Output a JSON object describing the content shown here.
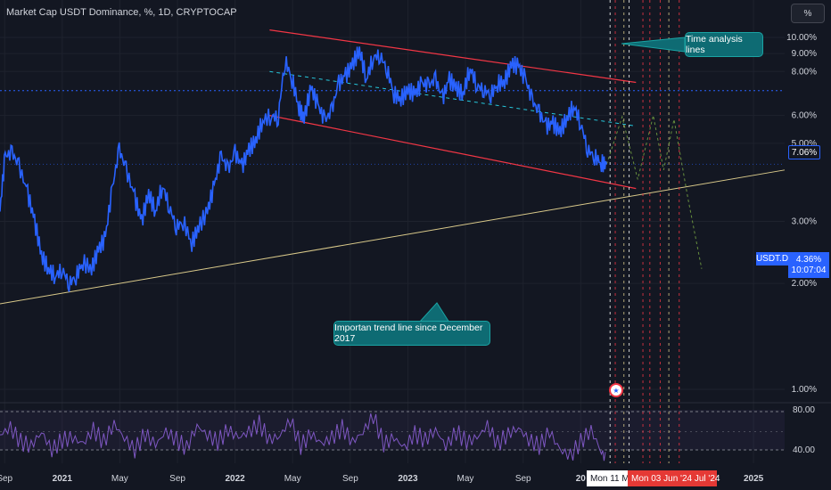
{
  "header": {
    "title": "Market Cap USDT Dominance, %, 1D, CRYPTOCAP"
  },
  "toolbar": {
    "scale_button": "%"
  },
  "annotations": {
    "time_lines_label": "Time analysis lines",
    "trend_line_label": "Importan trend line since December 2017"
  },
  "price_tags": {
    "level": "7.06%",
    "symbol": "USDT.D",
    "last_value": "4.36%",
    "countdown": "10:07:04"
  },
  "x_highlight": {
    "cursor_date": "Mon 11 M",
    "range_date": "Mon 03 Jun '24   Jul '24"
  },
  "colors": {
    "background": "#131722",
    "series": "#2962ff",
    "channel": "#f23645",
    "midline": "#26c6da",
    "trend": "#d9c98a",
    "rsi": "#7e57c2",
    "grid": "#1e222d"
  },
  "icons": {
    "event_marker": "us-flag-icon"
  },
  "chart_data": [
    {
      "type": "line",
      "name": "USDT Dominance",
      "y_scale": "log",
      "ylim": [
        0.95,
        11.5
      ],
      "ylabel": "",
      "y_ticks": [
        "10.00%",
        "9.00%",
        "8.00%",
        "6.00%",
        "5.00%",
        "3.00%",
        "2.00%",
        "1.00%"
      ],
      "y_tick_values": [
        10,
        9,
        8,
        6,
        5,
        3,
        2,
        1
      ],
      "x_ticks": [
        "Sep",
        "2021",
        "May",
        "Sep",
        "2022",
        "May",
        "Sep",
        "2023",
        "May",
        "Sep",
        "20",
        "2025"
      ],
      "x_ticks_bold": [
        false,
        true,
        false,
        false,
        true,
        false,
        false,
        true,
        false,
        false,
        true,
        true
      ],
      "x_tick_dates": [
        2020.667,
        2021.0,
        2021.333,
        2021.667,
        2022.0,
        2022.333,
        2022.667,
        2023.0,
        2023.333,
        2023.667,
        2024.0,
        2025.0
      ],
      "xlim": [
        2020.64,
        2025.18
      ],
      "series": [
        {
          "x": [
            2020.64,
            2020.67,
            2020.71,
            2020.75,
            2020.8,
            2020.84,
            2020.88,
            2020.92,
            2020.96,
            2021.0,
            2021.04,
            2021.08,
            2021.12,
            2021.17,
            2021.21,
            2021.25,
            2021.29,
            2021.33,
            2021.37,
            2021.42,
            2021.46,
            2021.5,
            2021.54,
            2021.58,
            2021.62,
            2021.66,
            2021.7,
            2021.75,
            2021.79,
            2021.84,
            2021.88,
            2021.92,
            2021.96,
            2022.0,
            2022.04,
            2022.08,
            2022.12,
            2022.16,
            2022.21,
            2022.25,
            2022.29,
            2022.33,
            2022.37,
            2022.4,
            2022.44,
            2022.48,
            2022.52,
            2022.56,
            2022.6,
            2022.64,
            2022.68,
            2022.72,
            2022.76,
            2022.8,
            2022.84,
            2022.88,
            2022.92,
            2022.96,
            2023.0,
            2023.04,
            2023.08,
            2023.12,
            2023.16,
            2023.2,
            2023.24,
            2023.28,
            2023.32,
            2023.36,
            2023.4,
            2023.44,
            2023.48,
            2023.52,
            2023.56,
            2023.6,
            2023.64,
            2023.68,
            2023.72,
            2023.76,
            2023.8,
            2023.84,
            2023.88,
            2023.92,
            2023.96,
            2024.0,
            2024.04,
            2024.08,
            2024.12,
            2024.15
          ],
          "y": [
            3.2,
            4.6,
            4.7,
            4.3,
            3.6,
            3.0,
            2.4,
            2.2,
            2.1,
            2.2,
            2.0,
            2.1,
            2.3,
            2.2,
            2.5,
            2.7,
            3.7,
            4.8,
            4.2,
            3.5,
            3.0,
            3.6,
            3.2,
            3.8,
            3.3,
            2.9,
            3.0,
            2.6,
            2.9,
            3.2,
            3.8,
            4.6,
            4.2,
            4.7,
            4.3,
            4.8,
            5.1,
            5.8,
            6.0,
            5.9,
            8.6,
            7.6,
            6.3,
            5.9,
            7.2,
            6.4,
            5.8,
            6.2,
            7.4,
            7.8,
            8.4,
            9.2,
            7.6,
            8.8,
            8.9,
            8.1,
            6.9,
            6.7,
            7.1,
            6.9,
            7.4,
            7.3,
            7.6,
            6.7,
            7.6,
            7.2,
            6.9,
            8.2,
            7.3,
            7.1,
            6.9,
            7.4,
            7.5,
            8.4,
            8.3,
            7.6,
            6.6,
            6.1,
            5.6,
            5.7,
            5.4,
            5.9,
            6.4,
            5.7,
            4.8,
            4.6,
            4.4,
            4.36
          ]
        }
      ],
      "annotations": [
        "Time analysis lines",
        "Importan trend line since December 2017"
      ]
    },
    {
      "type": "line",
      "name": "RSI",
      "ylim": [
        20,
        90
      ],
      "y_ticks": [
        "80.00",
        "40.00"
      ],
      "y_tick_values": [
        80,
        40
      ],
      "series": [
        {
          "x": [
            2020.64,
            2020.7,
            2020.76,
            2020.82,
            2020.88,
            2020.94,
            2021.0,
            2021.06,
            2021.12,
            2021.18,
            2021.24,
            2021.3,
            2021.36,
            2021.42,
            2021.48,
            2021.54,
            2021.6,
            2021.66,
            2021.72,
            2021.78,
            2021.84,
            2021.9,
            2021.96,
            2022.02,
            2022.08,
            2022.14,
            2022.2,
            2022.26,
            2022.32,
            2022.38,
            2022.44,
            2022.5,
            2022.56,
            2022.62,
            2022.68,
            2022.74,
            2022.8,
            2022.86,
            2022.92,
            2022.98,
            2023.04,
            2023.1,
            2023.16,
            2023.22,
            2023.28,
            2023.34,
            2023.4,
            2023.46,
            2023.52,
            2023.58,
            2023.64,
            2023.7,
            2023.76,
            2023.82,
            2023.88,
            2023.94,
            2024.0,
            2024.06,
            2024.12,
            2024.15
          ],
          "y": [
            55,
            62,
            48,
            44,
            58,
            40,
            50,
            52,
            46,
            60,
            48,
            66,
            52,
            40,
            56,
            45,
            58,
            50,
            42,
            64,
            55,
            48,
            60,
            52,
            58,
            66,
            50,
            54,
            70,
            44,
            56,
            46,
            52,
            62,
            48,
            58,
            74,
            46,
            52,
            42,
            56,
            50,
            60,
            44,
            58,
            48,
            52,
            64,
            46,
            56,
            62,
            50,
            44,
            58,
            40,
            34,
            48,
            60,
            38,
            30
          ]
        }
      ]
    }
  ]
}
